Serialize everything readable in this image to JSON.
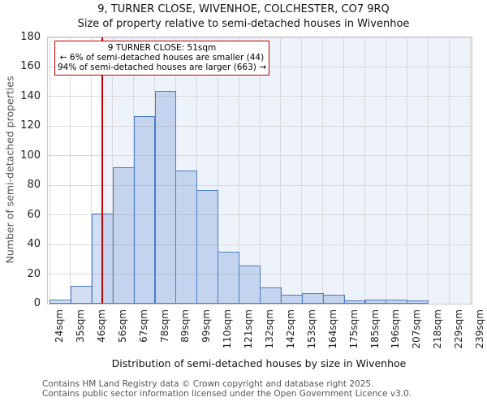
{
  "chart": {
    "title": "9, TURNER CLOSE, WIVENHOE, COLCHESTER, CO7 9RQ",
    "subtitle": "Size of property relative to semi-detached houses in Wivenhoe",
    "xlabel": "Distribution of semi-detached houses by size in Wivenhoe",
    "ylabel": "Number of semi-detached properties"
  },
  "chart_data": {
    "type": "bar",
    "bin_edge_labels": [
      "24sqm",
      "35sqm",
      "46sqm",
      "56sqm",
      "67sqm",
      "78sqm",
      "89sqm",
      "99sqm",
      "110sqm",
      "121sqm",
      "132sqm",
      "142sqm",
      "153sqm",
      "164sqm",
      "175sqm",
      "185sqm",
      "196sqm",
      "207sqm",
      "218sqm",
      "229sqm",
      "239sqm"
    ],
    "bin_edges": [
      24,
      35,
      46,
      56,
      67,
      78,
      89,
      99,
      110,
      121,
      132,
      142,
      153,
      164,
      175,
      185,
      196,
      207,
      218,
      229,
      239
    ],
    "values": [
      3,
      12,
      61,
      92,
      127,
      144,
      90,
      77,
      35,
      26,
      11,
      6,
      7,
      6,
      2,
      3,
      3,
      2,
      0,
      0
    ],
    "yticks": [
      0,
      20,
      40,
      60,
      80,
      100,
      120,
      140,
      160,
      180
    ],
    "ylim": [
      0,
      180
    ],
    "grid": true,
    "marker": {
      "value": 51,
      "label": "51sqm",
      "smaller_count": 44,
      "smaller_pct": 6,
      "larger_count": 663,
      "larger_pct": 94
    },
    "colors": {
      "bar_fill": "#d6e1f4",
      "bar_edge": "#4a7cc7",
      "marker_line": "#c00000",
      "annotation_border": "#c00000",
      "larger_region_shade": "#eef2fb",
      "gridline": "#d9d9d9"
    }
  },
  "annotation": {
    "line1": "9 TURNER CLOSE: 51sqm",
    "line2": "← 6% of semi-detached houses are smaller (44)",
    "line3": "94% of semi-detached houses are larger (663) →"
  },
  "footer": {
    "line1": "Contains HM Land Registry data © Crown copyright and database right 2025.",
    "line2": "Contains public sector information licensed under the Open Government Licence v3.0."
  }
}
